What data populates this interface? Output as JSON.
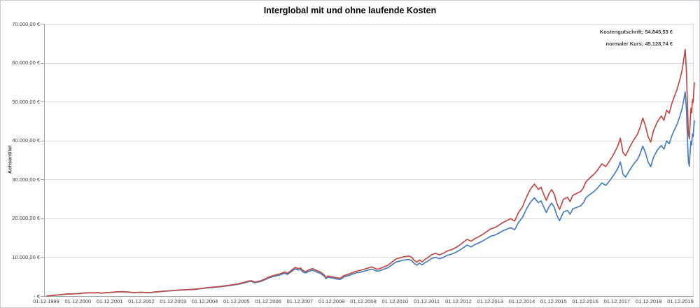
{
  "title": "Interglobal mit und ohne laufende Kosten",
  "y_axis": {
    "title": "Achsentitel",
    "tick_labels": [
      "70.000,00 €",
      "60.000,00 €",
      "50.000,00 €",
      "40.000,00 €",
      "30.000,00 €",
      "20.000,00 €",
      "10.000,00 €",
      "-   €"
    ],
    "min": 0,
    "max": 70000,
    "step": 10000
  },
  "x_axis": {
    "tick_labels": [
      "01.12.1999",
      "01.12.2000",
      "01.12.2001",
      "01.12.2002",
      "01.12.2003",
      "01.12.2004",
      "01.12.2005",
      "01.12.2006",
      "01.12.2007",
      "01.12.2008",
      "01.12.2009",
      "01.12.2010",
      "01.12.2011",
      "01.12.2012",
      "01.12.2013",
      "01.12.2014",
      "01.12.2015",
      "01.12.2016",
      "01.12.2017",
      "01.12.2018",
      "01.12.2019"
    ]
  },
  "annotations": [
    {
      "text": "Kostengutschrift;  54.845,53 €"
    },
    {
      "text": "normaler Kurs;  45.128,74 €"
    }
  ],
  "colors": {
    "series_red": "#be4b48",
    "series_blue": "#4a7ebb",
    "gridline": "#d9d9d9",
    "axis": "#a6a6a6",
    "tick_text": "#404040"
  },
  "chart_data": {
    "type": "line",
    "title": "Interglobal mit und ohne laufende Kosten",
    "xlabel": "",
    "ylabel": "Achsentitel",
    "ylim": [
      0,
      70000
    ],
    "x_unit": "years_since_01.12.1999",
    "xlim": [
      0,
      20.42
    ],
    "grid": true,
    "legend": "none (series labeled at last point, top right)",
    "x": [
      0,
      0.125,
      0.25,
      0.375,
      0.5,
      0.625,
      0.75,
      0.875,
      1.0,
      1.125,
      1.25,
      1.375,
      1.5,
      1.625,
      1.708,
      1.792,
      1.875,
      2.0,
      2.125,
      2.25,
      2.375,
      2.5,
      2.625,
      2.75,
      2.875,
      3.0,
      3.125,
      3.25,
      3.375,
      3.5,
      3.625,
      3.75,
      3.875,
      4.0,
      4.125,
      4.25,
      4.375,
      4.5,
      4.625,
      4.75,
      4.875,
      5.0,
      5.125,
      5.25,
      5.375,
      5.5,
      5.625,
      5.75,
      5.875,
      6.0,
      6.125,
      6.25,
      6.375,
      6.458,
      6.542,
      6.625,
      6.75,
      6.875,
      7.0,
      7.125,
      7.25,
      7.375,
      7.5,
      7.583,
      7.708,
      7.833,
      7.917,
      8.0,
      8.083,
      8.167,
      8.25,
      8.375,
      8.5,
      8.625,
      8.75,
      8.792,
      8.875,
      8.958,
      9.042,
      9.125,
      9.25,
      9.375,
      9.5,
      9.625,
      9.75,
      9.875,
      10.0,
      10.125,
      10.25,
      10.417,
      10.5,
      10.625,
      10.75,
      10.875,
      11.0,
      11.125,
      11.25,
      11.417,
      11.5,
      11.583,
      11.667,
      11.75,
      11.833,
      11.917,
      12.0,
      12.125,
      12.25,
      12.375,
      12.5,
      12.625,
      12.75,
      12.875,
      13.0,
      13.125,
      13.25,
      13.375,
      13.5,
      13.625,
      13.75,
      13.875,
      14.0,
      14.125,
      14.25,
      14.375,
      14.5,
      14.625,
      14.75,
      14.875,
      15.0,
      15.125,
      15.25,
      15.375,
      15.5,
      15.583,
      15.667,
      15.75,
      15.833,
      15.917,
      16.0,
      16.083,
      16.167,
      16.292,
      16.417,
      16.5,
      16.583,
      16.708,
      16.833,
      16.917,
      17.0,
      17.125,
      17.25,
      17.375,
      17.5,
      17.625,
      17.75,
      17.875,
      18.0,
      18.083,
      18.167,
      18.25,
      18.375,
      18.5,
      18.625,
      18.708,
      18.792,
      18.875,
      18.958,
      19.042,
      19.125,
      19.25,
      19.375,
      19.458,
      19.542,
      19.625,
      19.708,
      19.792,
      19.875,
      19.958,
      20.04,
      20.1,
      20.13,
      20.17,
      20.2,
      20.23,
      20.26,
      20.29,
      20.31,
      20.33,
      20.36,
      20.38,
      20.4,
      20.42
    ],
    "series": [
      {
        "name": "Kostengutschrift",
        "color": "#be4b48",
        "final_value": 54845.53,
        "final_label": "Kostengutschrift;  54.845,53 €",
        "values": [
          60,
          140,
          230,
          330,
          430,
          520,
          560,
          600,
          640,
          760,
          830,
          870,
          830,
          900,
          760,
          820,
          900,
          950,
          1040,
          1100,
          1140,
          1090,
          1000,
          880,
          960,
          980,
          920,
          900,
          1050,
          1130,
          1220,
          1300,
          1370,
          1450,
          1540,
          1600,
          1650,
          1700,
          1760,
          1850,
          1980,
          2100,
          2220,
          2320,
          2420,
          2520,
          2660,
          2800,
          2950,
          3100,
          3350,
          3600,
          3900,
          3950,
          3600,
          3700,
          3950,
          4400,
          4900,
          5250,
          5500,
          5800,
          6200,
          5850,
          6600,
          7400,
          7100,
          7200,
          6500,
          6300,
          6700,
          7100,
          6600,
          6200,
          5400,
          4800,
          5200,
          5000,
          4900,
          4700,
          4600,
          5300,
          5600,
          6000,
          6400,
          6600,
          6900,
          7200,
          7500,
          6900,
          7100,
          7500,
          7900,
          8700,
          9500,
          9800,
          10100,
          10300,
          10000,
          9200,
          8700,
          9300,
          8800,
          9400,
          9800,
          10600,
          11000,
          10600,
          11000,
          11600,
          11900,
          12400,
          13000,
          13800,
          14600,
          14100,
          14800,
          15300,
          15900,
          16600,
          17300,
          17600,
          18200,
          18900,
          19400,
          19900,
          19300,
          21500,
          23000,
          25500,
          27500,
          28800,
          27400,
          28000,
          26200,
          24600,
          26300,
          27400,
          26200,
          23800,
          22300,
          24900,
          25400,
          24300,
          25900,
          26400,
          26900,
          27800,
          29400,
          30400,
          31300,
          32500,
          34000,
          33300,
          34800,
          36500,
          38500,
          40600,
          36900,
          36100,
          38200,
          40100,
          41600,
          43400,
          45800,
          43800,
          41000,
          39600,
          42400,
          44800,
          46300,
          45200,
          47800,
          47000,
          49500,
          51400,
          53200,
          55600,
          58400,
          61800,
          63400,
          57500,
          49000,
          41800,
          40400,
          45600,
          48300,
          47100,
          50600,
          49800,
          52700,
          54845.53
        ]
      },
      {
        "name": "normaler Kurs",
        "color": "#4a7ebb",
        "final_value": 45128.74,
        "final_label": "normaler Kurs;  45.128,74 €",
        "values": [
          60,
          140,
          230,
          329,
          429,
          519,
          558,
          598,
          637,
          756,
          825,
          865,
          824,
          893,
          754,
          813,
          892,
          941,
          1029,
          1088,
          1126,
          1076,
          987,
          867,
          946,
          964,
          905,
          884,
          1031,
          1108,
          1195,
          1273,
          1340,
          1417,
          1504,
          1561,
          1608,
          1655,
          1712,
          1798,
          1922,
          2037,
          2151,
          2246,
          2340,
          2435,
          2567,
          2700,
          2841,
          2983,
          3220,
          3457,
          3741,
          3786,
          3448,
          3542,
          3777,
          4203,
          4676,
          5004,
          5237,
          5516,
          5890,
          5553,
          6259,
          7009,
          6720,
          6810,
          6143,
          5950,
          6323,
          6693,
          6214,
          5830,
          5073,
          4507,
          4879,
          4688,
          4590,
          4400,
          4301,
          4950,
          5224,
          5591,
          5956,
          6135,
          6406,
          6677,
          6947,
          6380,
          6560,
          6920,
          7281,
          8008,
          8733,
          8997,
          9262,
          9429,
          9147,
          8408,
          7944,
          8484,
          8022,
          8562,
          8918,
          9633,
          9985,
          9609,
          9958,
          10488,
          10746,
          11182,
          11708,
          12412,
          13114,
          12648,
          13258,
          13687,
          14205,
          14811,
          15414,
          15660,
          16171,
          16770,
          17190,
          17608,
          17054,
          18972,
          20265,
          22437,
          24162,
          25269,
          24008,
          24508,
          22912,
          21493,
          22954,
          23893,
          22825,
          20715,
          19390,
          21621,
          22022,
          21046,
          22411,
          22810,
          23207,
          23961,
          25313,
          26135,
          26868,
          27856,
          29101,
          28458,
          29695,
          31098,
          32752,
          34502,
          31328,
          30617,
          32348,
          33904,
          35119,
          36599,
          38582,
          36862,
          34469,
          33260,
          35574,
          37529,
          38725,
          37765,
          39898,
          39184,
          41228,
          42765,
          44215,
          46159,
          48431,
          51196,
          52495,
          47581,
          40528,
          34552,
          33378,
          37656,
          39862,
          38852,
          41714,
          41035,
          43398,
          45128.74
        ]
      }
    ]
  }
}
